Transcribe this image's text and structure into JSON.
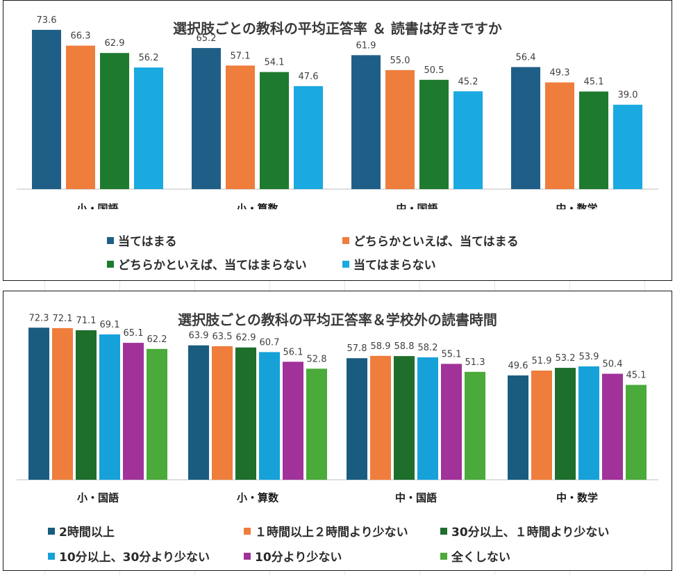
{
  "charts": [
    {
      "title": "選択肢ごとの教科の平均正答率 ＆ 読書は好きですか",
      "legend": [
        "当てはまる",
        "どちらかといえば、当てはまる",
        "どちらかといえば、当てはまらない",
        "当てはまらない"
      ]
    },
    {
      "title": "選択肢ごとの教科の平均正答率＆学校外の読書時間",
      "legend": [
        "2時間以上",
        "１時間以上２時間より少ない",
        "30分以上、１時間より少ない",
        "10分以上、30分より少ない",
        "10分より少ない",
        "全くしない"
      ]
    }
  ],
  "chart_data": [
    {
      "type": "bar",
      "title": "選択肢ごとの教科の平均正答率 ＆ 読書は好きですか",
      "categories": [
        "小・国語",
        "小・算数",
        "中・国語",
        "中・数学"
      ],
      "series": [
        {
          "name": "当てはまる",
          "values": [
            73.6,
            65.2,
            61.9,
            56.4
          ]
        },
        {
          "name": "どちらかといえば、当てはまる",
          "values": [
            66.3,
            57.1,
            55.0,
            49.3
          ]
        },
        {
          "name": "どちらかといえば、当てはまらない",
          "values": [
            62.9,
            54.1,
            50.5,
            45.1
          ]
        },
        {
          "name": "当てはまらない",
          "values": [
            56.2,
            47.6,
            45.2,
            39.0
          ]
        }
      ],
      "colors": [
        "#1f5f87",
        "#ef7d3c",
        "#1e7a2e",
        "#1aa9e0"
      ],
      "legend_position": "bottom",
      "grid": false,
      "ylim": [
        0,
        80
      ]
    },
    {
      "type": "bar",
      "title": "選択肢ごとの教科の平均正答率＆学校外の読書時間",
      "categories": [
        "小・国語",
        "小・算数",
        "中・国語",
        "中・数学"
      ],
      "series": [
        {
          "name": "2時間以上",
          "values": [
            72.3,
            63.9,
            57.8,
            49.6
          ]
        },
        {
          "name": "１時間以上２時間より少ない",
          "values": [
            72.1,
            63.5,
            58.9,
            51.9
          ]
        },
        {
          "name": "30分以上、１時間より少ない",
          "values": [
            71.1,
            62.9,
            58.8,
            53.2
          ]
        },
        {
          "name": "10分以上、30分より少ない",
          "values": [
            69.1,
            60.7,
            58.2,
            53.9
          ]
        },
        {
          "name": "10分より少ない",
          "values": [
            65.1,
            56.1,
            55.1,
            50.4
          ]
        },
        {
          "name": "全くしない",
          "values": [
            62.2,
            52.8,
            51.3,
            45.1
          ]
        }
      ],
      "colors": [
        "#1a5c80",
        "#ef7d3c",
        "#1e6e2c",
        "#16a1d9",
        "#a0329a",
        "#4aaa3a"
      ],
      "legend_position": "bottom",
      "grid": false,
      "ylim": [
        0,
        80
      ]
    }
  ]
}
